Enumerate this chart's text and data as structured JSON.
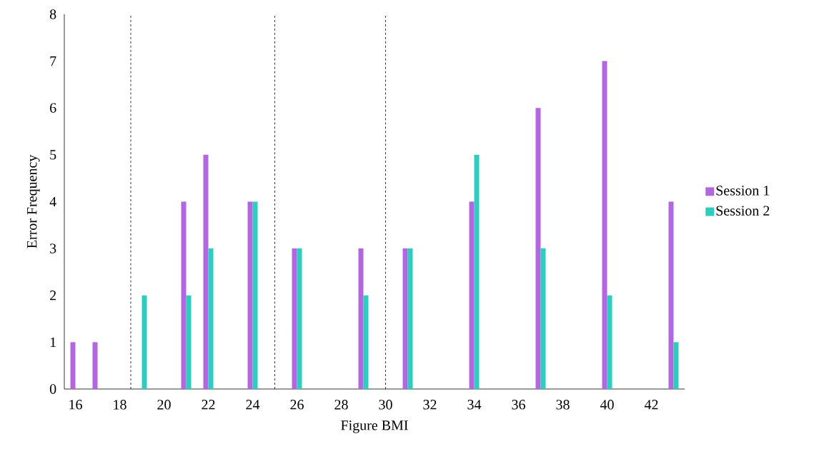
{
  "chart_data": {
    "type": "bar",
    "xlabel": "Figure BMI",
    "ylabel": "Error Frequency",
    "x": [
      16,
      17,
      19,
      21,
      22,
      24,
      26,
      29,
      31,
      34,
      37,
      40,
      43
    ],
    "series": [
      {
        "name": "Session 1",
        "color": "#b266e0",
        "values": [
          1,
          1,
          0,
          4,
          5,
          4,
          3,
          3,
          3,
          4,
          6,
          7,
          4
        ]
      },
      {
        "name": "Session 2",
        "color": "#2ecdc0",
        "values": [
          0,
          0,
          2,
          2,
          3,
          4,
          3,
          2,
          3,
          5,
          3,
          2,
          1
        ]
      }
    ],
    "xlim": [
      15.5,
      43.5
    ],
    "ylim": [
      0,
      8
    ],
    "xticks": [
      16,
      18,
      20,
      22,
      24,
      26,
      28,
      30,
      32,
      34,
      36,
      38,
      40,
      42
    ],
    "yticks": [
      0,
      1,
      2,
      3,
      4,
      5,
      6,
      7,
      8
    ],
    "ref_lines": [
      {
        "axis": "x",
        "value": 18.5,
        "color": "#000000",
        "line_style": "dashed"
      },
      {
        "axis": "x",
        "value": 25,
        "color": "#000000",
        "line_style": "dashed"
      },
      {
        "axis": "x",
        "value": 30,
        "color": "#000000",
        "line_style": "dashed"
      }
    ],
    "grid": false,
    "legend": "right"
  }
}
